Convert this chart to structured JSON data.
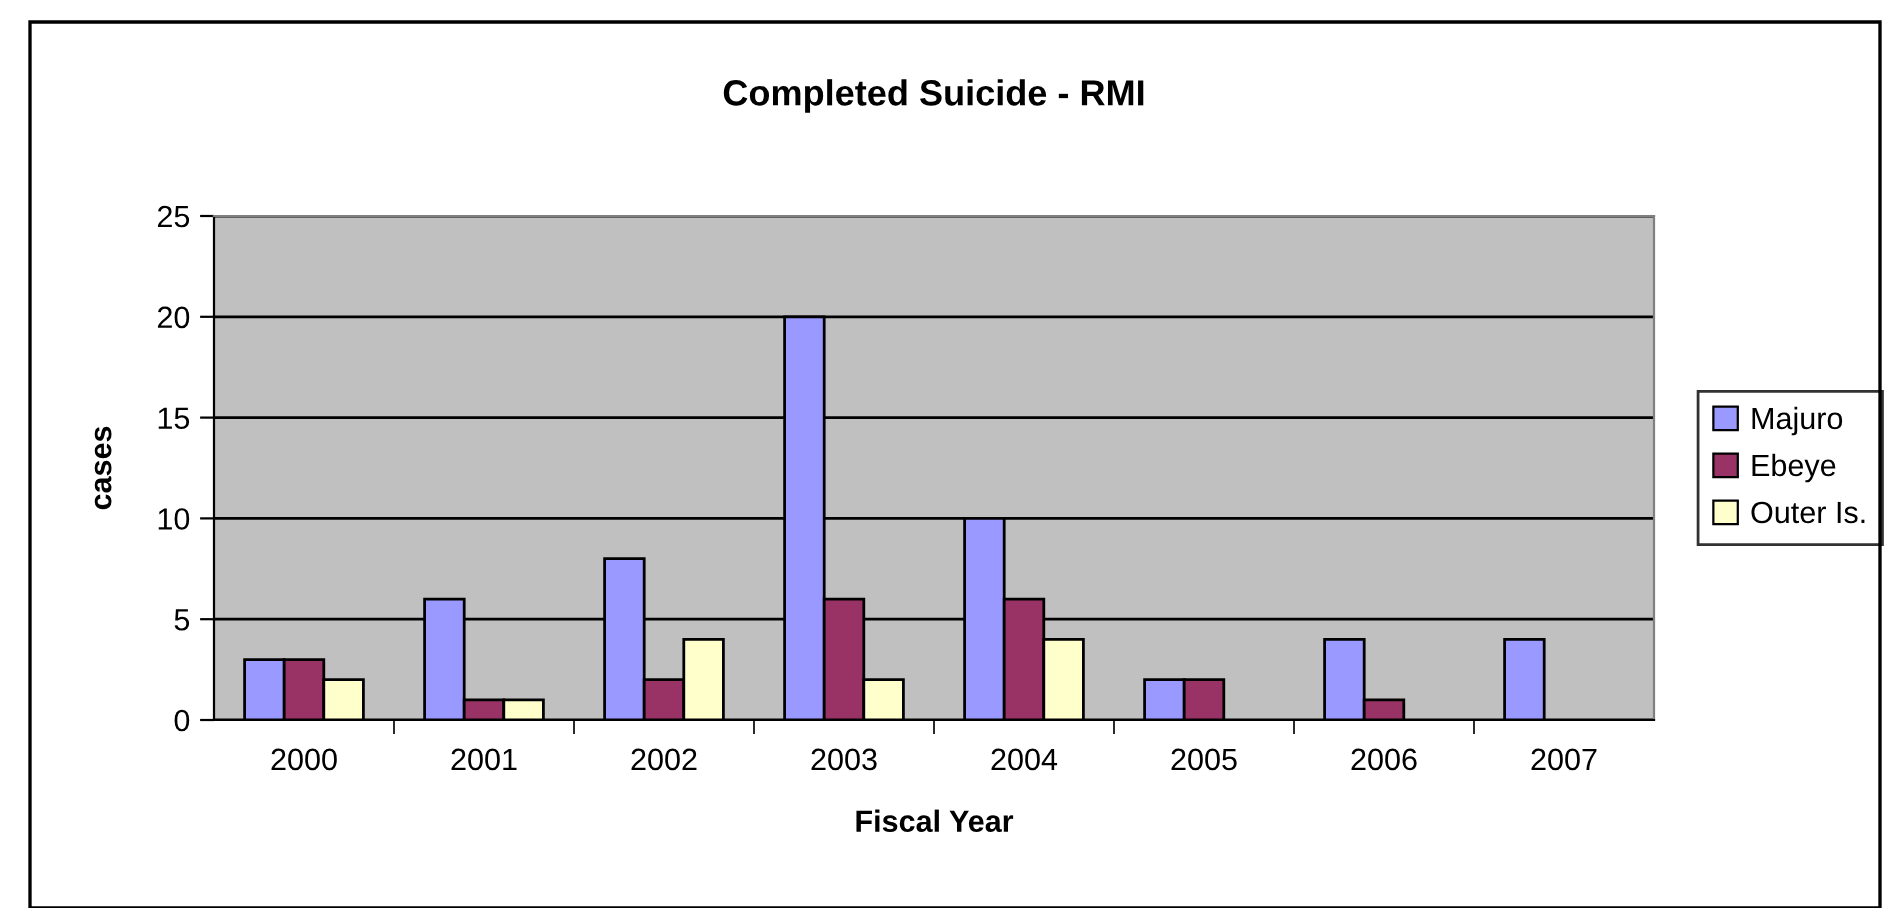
{
  "chart_data": {
    "type": "bar",
    "title": "Completed Suicide - RMI",
    "xlabel": "Fiscal Year",
    "ylabel": "cases",
    "categories": [
      "2000",
      "2001",
      "2002",
      "2003",
      "2004",
      "2005",
      "2006",
      "2007"
    ],
    "series": [
      {
        "name": "Majuro",
        "color": "#9999ff",
        "values": [
          3,
          6,
          8,
          20,
          10,
          2,
          4,
          4
        ]
      },
      {
        "name": "Ebeye",
        "color": "#993366",
        "values": [
          3,
          1,
          2,
          6,
          6,
          2,
          1,
          null
        ]
      },
      {
        "name": "Outer Is.",
        "color": "#ffffcc",
        "values": [
          2,
          1,
          4,
          2,
          4,
          null,
          null,
          null
        ]
      }
    ],
    "ylim": [
      0,
      25
    ],
    "yticks": [
      0,
      5,
      10,
      15,
      20,
      25
    ],
    "grid": "y",
    "legend": "right"
  }
}
